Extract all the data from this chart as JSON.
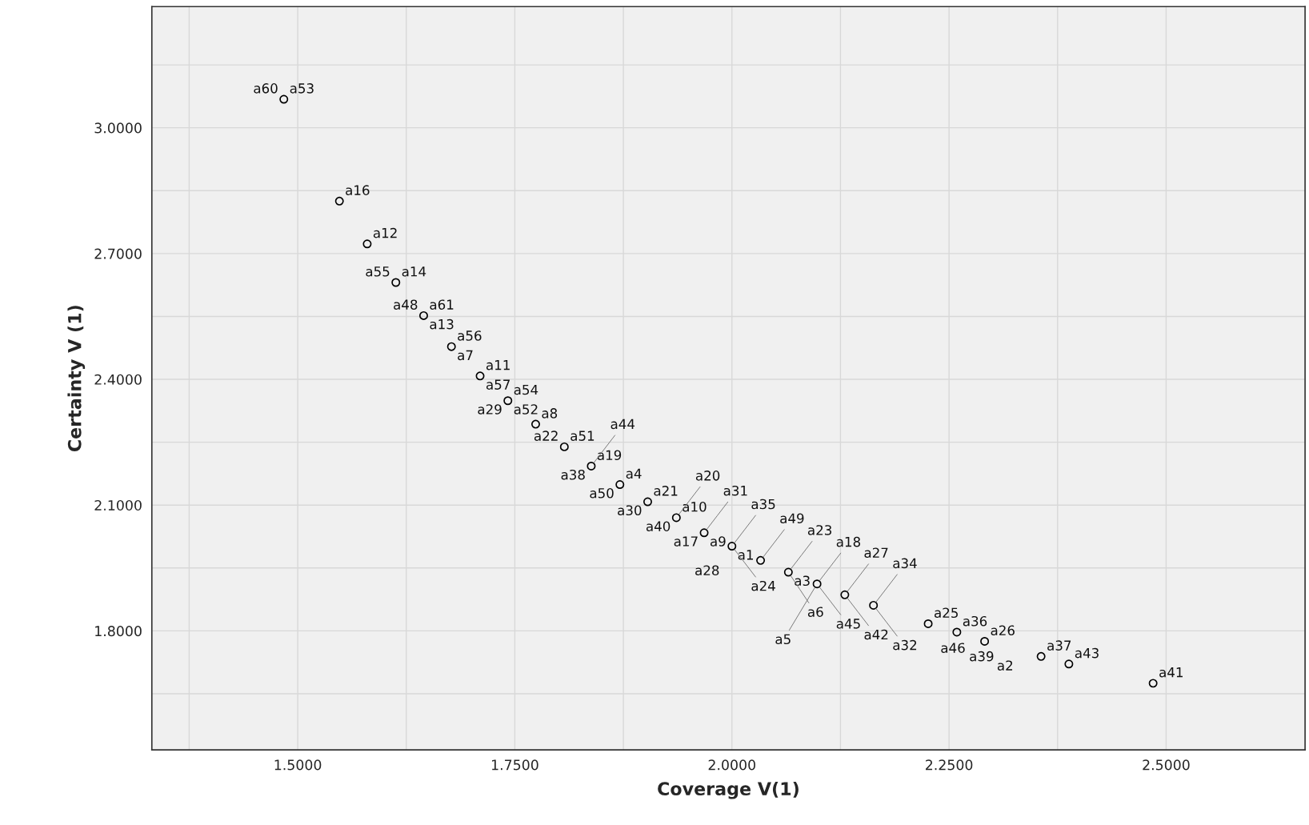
{
  "chart_data": {
    "type": "scatter",
    "xlabel": "Coverage V(1)",
    "ylabel": "Certainty V (1)",
    "xlim": [
      1.332,
      2.66
    ],
    "ylim": [
      1.516,
      3.289
    ],
    "xticks": [
      {
        "value": 1.375,
        "label": null
      },
      {
        "value": 1.5,
        "label": "1.5000"
      },
      {
        "value": 1.625,
        "label": null
      },
      {
        "value": 1.75,
        "label": "1.7500"
      },
      {
        "value": 1.875,
        "label": null
      },
      {
        "value": 2.0,
        "label": "2.0000"
      },
      {
        "value": 2.125,
        "label": null
      },
      {
        "value": 2.25,
        "label": "2.2500"
      },
      {
        "value": 2.375,
        "label": null
      },
      {
        "value": 2.5,
        "label": "2.5000"
      }
    ],
    "yticks": [
      {
        "value": 1.65,
        "label": null
      },
      {
        "value": 1.8,
        "label": "1.8000"
      },
      {
        "value": 1.95,
        "label": null
      },
      {
        "value": 2.1,
        "label": "2.1000"
      },
      {
        "value": 2.25,
        "label": null
      },
      {
        "value": 2.4,
        "label": "2.4000"
      },
      {
        "value": 2.55,
        "label": null
      },
      {
        "value": 2.7,
        "label": "2.7000"
      },
      {
        "value": 2.85,
        "label": null
      },
      {
        "value": 3.0,
        "label": "3.0000"
      },
      {
        "value": 3.15,
        "label": null
      }
    ],
    "grid": true,
    "marker": "circle",
    "series": [
      {
        "color": "#000000",
        "x": [
          1.484,
          1.548,
          1.58,
          1.613,
          1.645,
          1.677,
          1.71,
          1.742,
          1.774,
          1.807,
          1.838,
          1.871,
          1.903,
          1.936,
          1.968,
          2.0,
          2.033,
          2.065,
          2.098,
          2.13,
          2.163,
          2.226,
          2.259,
          2.291,
          2.356,
          2.388,
          2.485
        ],
        "values": [
          3.068,
          2.825,
          2.723,
          2.631,
          2.552,
          2.478,
          2.408,
          2.349,
          2.293,
          2.239,
          2.193,
          2.149,
          2.108,
          2.07,
          2.034,
          2.002,
          1.968,
          1.94,
          1.912,
          1.886,
          1.861,
          1.817,
          1.797,
          1.775,
          1.739,
          1.721,
          1.675
        ]
      }
    ],
    "annotations": [
      {
        "text": "a53",
        "x": 1.484,
        "y": 3.068
      },
      {
        "text": "a60",
        "x": 1.484,
        "y": 3.068
      },
      {
        "text": "a16",
        "x": 1.548,
        "y": 2.825
      },
      {
        "text": "a12",
        "x": 1.58,
        "y": 2.723
      },
      {
        "text": "a14",
        "x": 1.613,
        "y": 2.631
      },
      {
        "text": "a55",
        "x": 1.613,
        "y": 2.631
      },
      {
        "text": "a61",
        "x": 1.645,
        "y": 2.552
      },
      {
        "text": "a48",
        "x": 1.645,
        "y": 2.552
      },
      {
        "text": "a13",
        "x": 1.645,
        "y": 2.552
      },
      {
        "text": "a56",
        "x": 1.677,
        "y": 2.478
      },
      {
        "text": "a7",
        "x": 1.677,
        "y": 2.478
      },
      {
        "text": "a11",
        "x": 1.71,
        "y": 2.408
      },
      {
        "text": "a57",
        "x": 1.71,
        "y": 2.408
      },
      {
        "text": "a54",
        "x": 1.742,
        "y": 2.349
      },
      {
        "text": "a52",
        "x": 1.742,
        "y": 2.349
      },
      {
        "text": "a29",
        "x": 1.742,
        "y": 2.349
      },
      {
        "text": "a8",
        "x": 1.774,
        "y": 2.293
      },
      {
        "text": "a51",
        "x": 1.807,
        "y": 2.239
      },
      {
        "text": "a22",
        "x": 1.807,
        "y": 2.239
      },
      {
        "text": "a19",
        "x": 1.838,
        "y": 2.193
      },
      {
        "text": "a38",
        "x": 1.838,
        "y": 2.193
      },
      {
        "text": "a44",
        "x": 1.838,
        "y": 2.193
      },
      {
        "text": "a4",
        "x": 1.871,
        "y": 2.149
      },
      {
        "text": "a50",
        "x": 1.871,
        "y": 2.149
      },
      {
        "text": "a21",
        "x": 1.903,
        "y": 2.108
      },
      {
        "text": "a30",
        "x": 1.903,
        "y": 2.108
      },
      {
        "text": "a10",
        "x": 1.936,
        "y": 2.07
      },
      {
        "text": "a40",
        "x": 1.936,
        "y": 2.07
      },
      {
        "text": "a20",
        "x": 1.936,
        "y": 2.07
      },
      {
        "text": "a17",
        "x": 1.968,
        "y": 2.034
      },
      {
        "text": "a31",
        "x": 1.968,
        "y": 2.034
      },
      {
        "text": "a9",
        "x": 1.968,
        "y": 2.034
      },
      {
        "text": "a1",
        "x": 2.0,
        "y": 2.002
      },
      {
        "text": "a28",
        "x": 2.0,
        "y": 2.002
      },
      {
        "text": "a35",
        "x": 2.0,
        "y": 2.002
      },
      {
        "text": "a24",
        "x": 2.0,
        "y": 2.002
      },
      {
        "text": "a49",
        "x": 2.033,
        "y": 1.968
      },
      {
        "text": "a23",
        "x": 2.065,
        "y": 1.94
      },
      {
        "text": "a3",
        "x": 2.065,
        "y": 1.94
      },
      {
        "text": "a6",
        "x": 2.065,
        "y": 1.94
      },
      {
        "text": "a18",
        "x": 2.098,
        "y": 1.912
      },
      {
        "text": "a45",
        "x": 2.098,
        "y": 1.912
      },
      {
        "text": "a5",
        "x": 2.098,
        "y": 1.912
      },
      {
        "text": "a27",
        "x": 2.13,
        "y": 1.886
      },
      {
        "text": "a42",
        "x": 2.13,
        "y": 1.886
      },
      {
        "text": "a34",
        "x": 2.163,
        "y": 1.861
      },
      {
        "text": "a32",
        "x": 2.163,
        "y": 1.861
      },
      {
        "text": "a25",
        "x": 2.226,
        "y": 1.817
      },
      {
        "text": "a46",
        "x": 2.226,
        "y": 1.817
      },
      {
        "text": "a36",
        "x": 2.259,
        "y": 1.797
      },
      {
        "text": "a39",
        "x": 2.259,
        "y": 1.797
      },
      {
        "text": "a26",
        "x": 2.291,
        "y": 1.775
      },
      {
        "text": "a2",
        "x": 2.291,
        "y": 1.775
      },
      {
        "text": "a37",
        "x": 2.356,
        "y": 1.739
      },
      {
        "text": "a43",
        "x": 2.388,
        "y": 1.721
      },
      {
        "text": "a41",
        "x": 2.485,
        "y": 1.675
      }
    ]
  }
}
